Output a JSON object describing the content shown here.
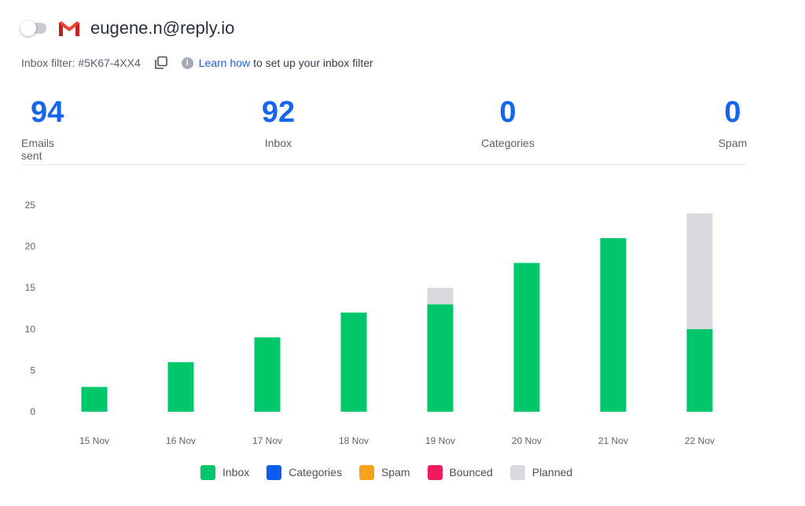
{
  "account": {
    "email": "eugene.n@reply.io",
    "provider_icon": "gmail-icon",
    "toggle_on": false
  },
  "filter": {
    "label": "Inbox filter: #5K67-4XX4",
    "learn_link": "Learn how",
    "learn_rest": "to set up your inbox filter"
  },
  "stats": [
    {
      "value": "94",
      "label": "Emails sent"
    },
    {
      "value": "92",
      "label": "Inbox"
    },
    {
      "value": "0",
      "label": "Categories"
    },
    {
      "value": "0",
      "label": "Spam"
    }
  ],
  "colors": {
    "accent": "#1565ee",
    "inbox": "#00c86a",
    "categories": "#0d5cf0",
    "spam": "#f6a21e",
    "bounced": "#f2195c",
    "planned": "#d9dade"
  },
  "legend": [
    {
      "label": "Inbox",
      "color": "#00c86a"
    },
    {
      "label": "Categories",
      "color": "#0d5cf0"
    },
    {
      "label": "Spam",
      "color": "#f6a21e"
    },
    {
      "label": "Bounced",
      "color": "#f2195c"
    },
    {
      "label": "Planned",
      "color": "#d9dade"
    }
  ],
  "chart_data": {
    "type": "bar",
    "stacked": true,
    "categories": [
      "15 Nov",
      "16 Nov",
      "17 Nov",
      "18 Nov",
      "19 Nov",
      "20 Nov",
      "21 Nov",
      "22 Nov"
    ],
    "yticks": [
      0,
      5,
      10,
      15,
      20,
      25
    ],
    "ylim": [
      0,
      25
    ],
    "grid": false,
    "legend_position": "bottom",
    "series": [
      {
        "name": "Inbox",
        "color": "#00c86a",
        "values": [
          3,
          6,
          9,
          12,
          13,
          18,
          21,
          10
        ]
      },
      {
        "name": "Categories",
        "color": "#0d5cf0",
        "values": [
          0,
          0,
          0,
          0,
          0,
          0,
          0,
          0
        ]
      },
      {
        "name": "Spam",
        "color": "#f6a21e",
        "values": [
          0,
          0,
          0,
          0,
          0,
          0,
          0,
          0
        ]
      },
      {
        "name": "Bounced",
        "color": "#f2195c",
        "values": [
          0,
          0,
          0,
          0,
          0,
          0,
          0,
          0
        ]
      },
      {
        "name": "Planned",
        "color": "#d9dade",
        "values": [
          0,
          0,
          0,
          0,
          2,
          0,
          0,
          14
        ]
      }
    ]
  }
}
